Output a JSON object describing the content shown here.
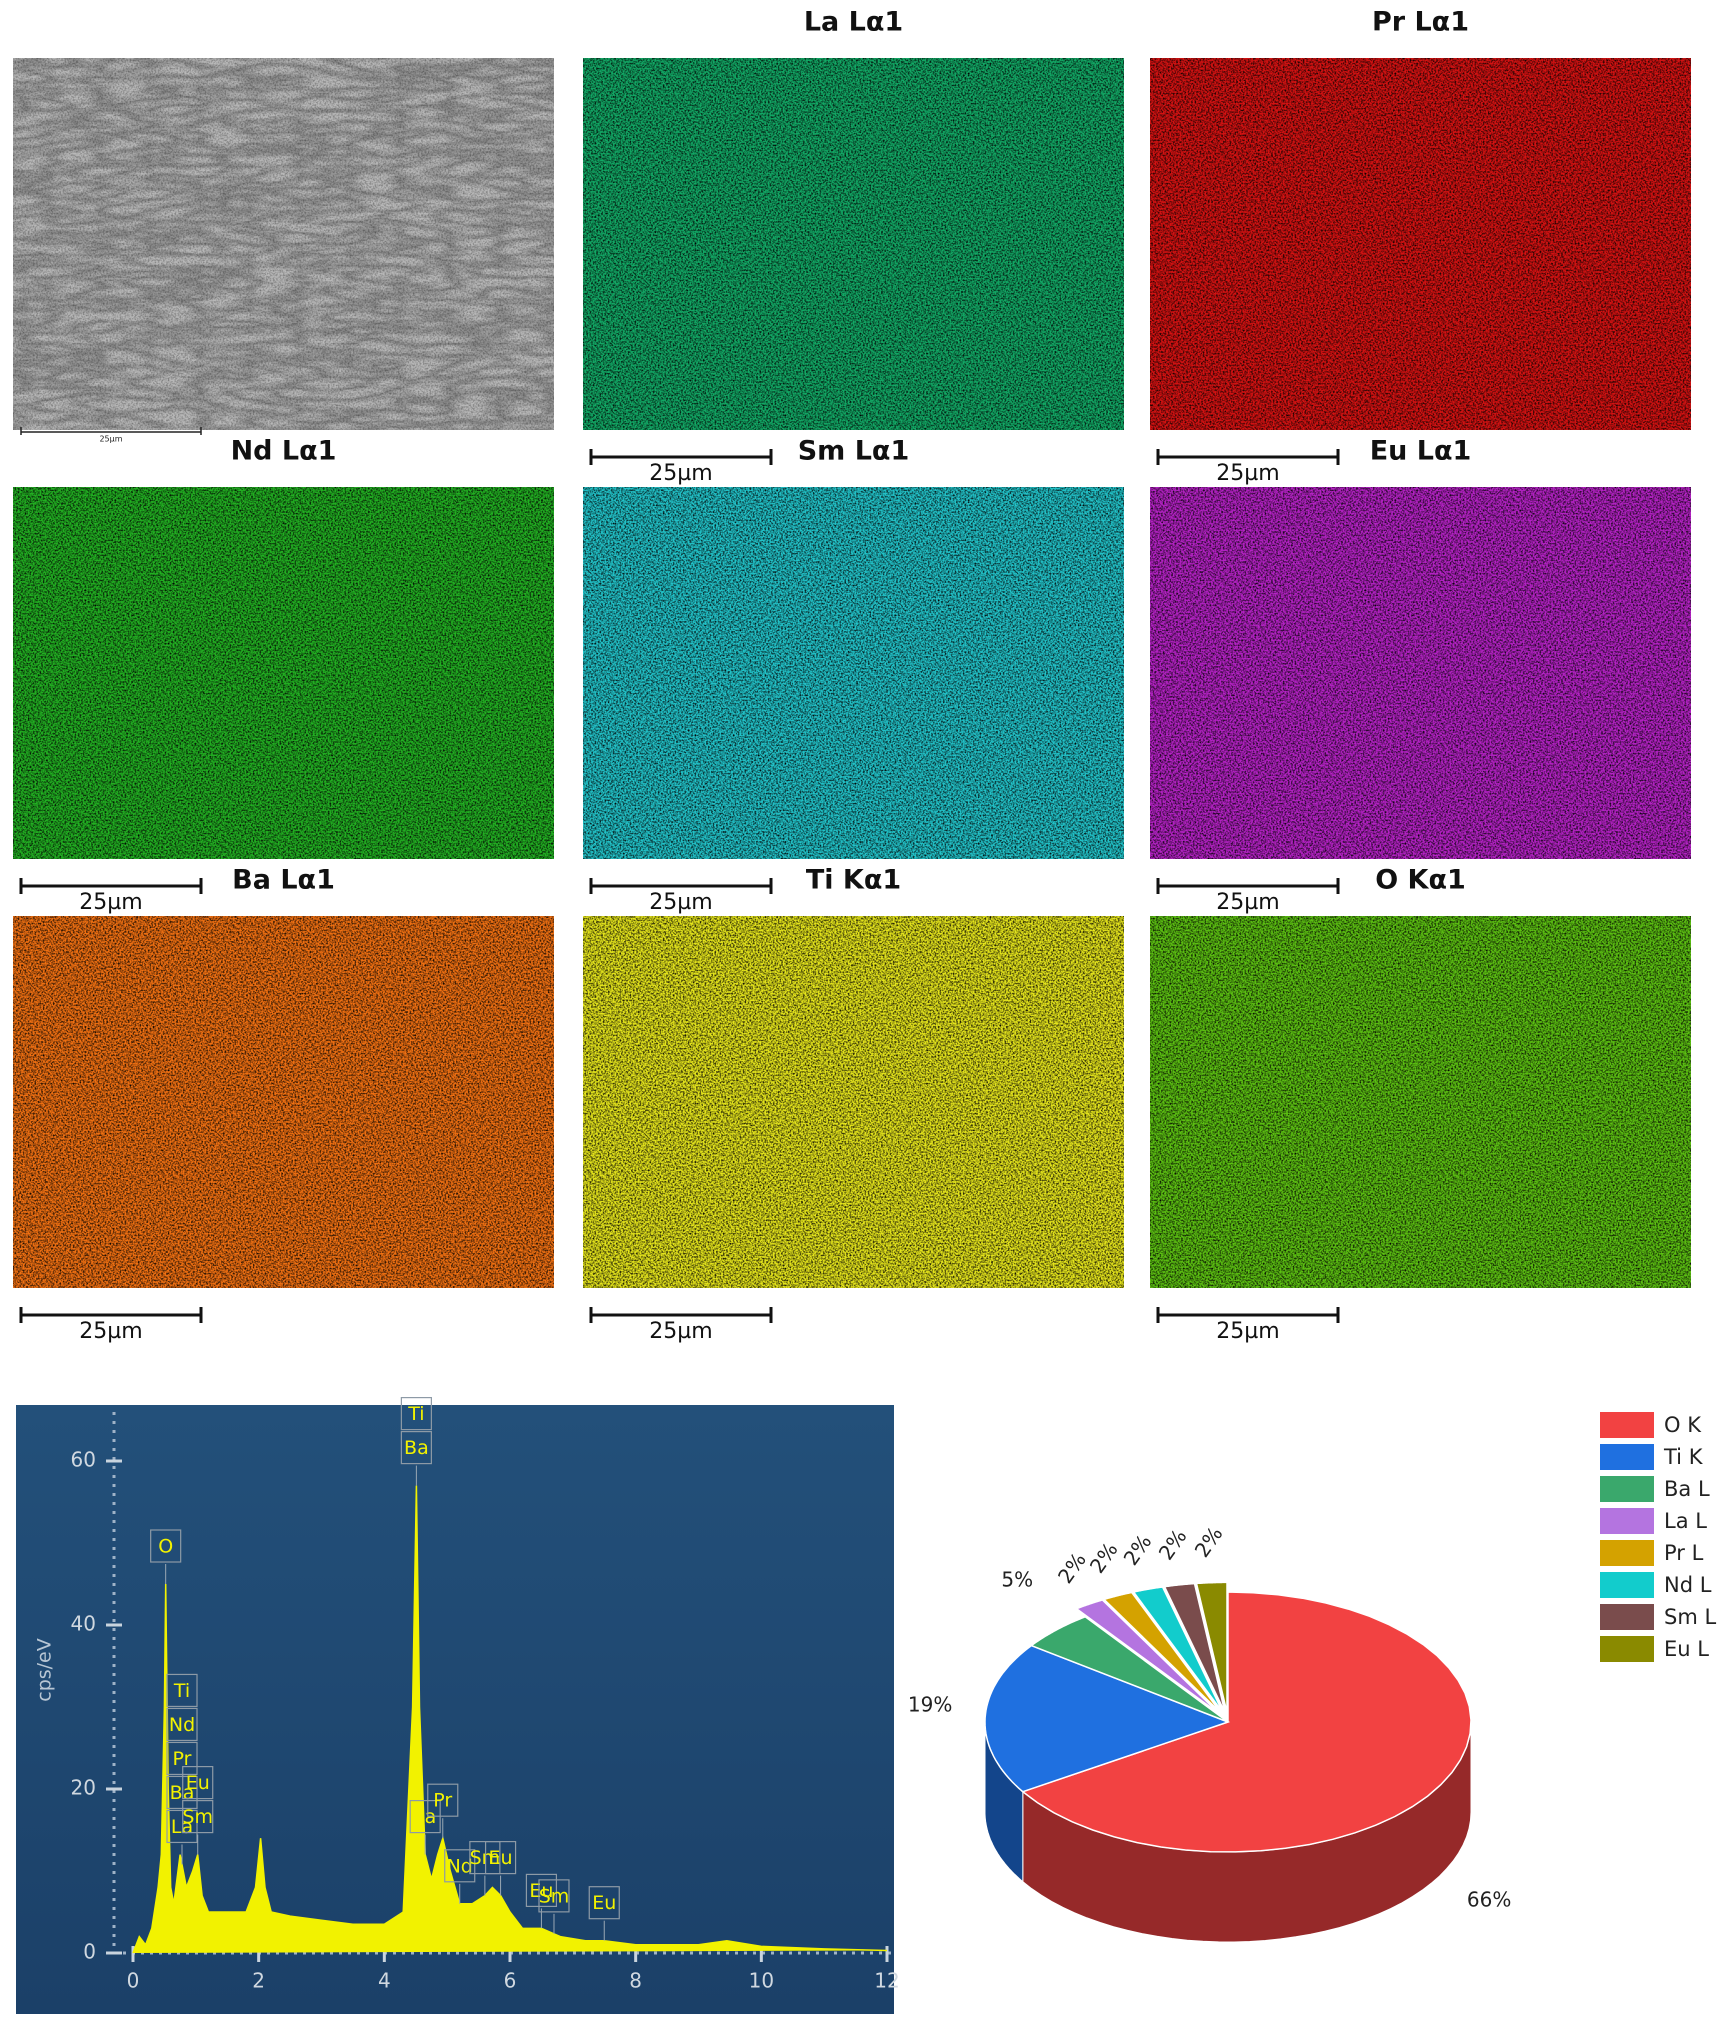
{
  "maps": {
    "panels": [
      {
        "scale_label": "25µm",
        "color": "#b8b8b8"
      },
      {
        "title": "La Lα1",
        "scale_label": "25µm",
        "color": "#12a865"
      },
      {
        "title": "Pr Lα1",
        "scale_label": "25µm",
        "color": "#d41212"
      },
      {
        "title": "Nd Lα1",
        "scale_label": "25µm",
        "color": "#22b022"
      },
      {
        "title": "Sm Lα1",
        "scale_label": "25µm",
        "color": "#22c2c8"
      },
      {
        "title": "Eu Lα1",
        "scale_label": "25µm",
        "color": "#b422c4"
      },
      {
        "title": "Ba Lα1",
        "scale_label": "25µm",
        "color": "#f07012"
      },
      {
        "title": "Ti Kα1",
        "scale_label": "25µm",
        "color": "#e4e41c"
      },
      {
        "title": "O Kα1",
        "scale_label": "25µm",
        "color": "#5cc012"
      }
    ]
  },
  "chart_data": [
    {
      "type": "line",
      "y_label": "cps/eV",
      "x": [
        0,
        0.1,
        0.2,
        0.3,
        0.4,
        0.45,
        0.5,
        0.52,
        0.56,
        0.6,
        0.65,
        0.75,
        0.85,
        0.95,
        1.03,
        1.1,
        1.2,
        1.5,
        1.8,
        1.95,
        2.03,
        2.1,
        2.2,
        2.5,
        3,
        3.5,
        4,
        4.3,
        4.45,
        4.51,
        4.56,
        4.65,
        4.75,
        4.85,
        4.93,
        5.05,
        5.2,
        5.4,
        5.6,
        5.72,
        5.85,
        6,
        6.2,
        6.5,
        6.8,
        7.2,
        7.5,
        8,
        9,
        9.45,
        10,
        11,
        12
      ],
      "series": [
        {
          "color": "#f2f200",
          "values": [
            0,
            2,
            1,
            3,
            8,
            12,
            30,
            45,
            20,
            8,
            6,
            12,
            8,
            10,
            12,
            7,
            5,
            5,
            5,
            8,
            14,
            8,
            5,
            4.5,
            4,
            3.5,
            3.5,
            5,
            30,
            57,
            30,
            12,
            9,
            12,
            14,
            10,
            6,
            6,
            7,
            8,
            7,
            5,
            3,
            3,
            2,
            1.5,
            1.5,
            1,
            1,
            1.5,
            0.8,
            0.5,
            0.3
          ]
        }
      ],
      "xlim": [
        0,
        12
      ],
      "ylim": [
        0,
        65
      ],
      "xticks": [
        0,
        2,
        4,
        6,
        8,
        10,
        12
      ],
      "yticks": [
        0,
        20,
        40,
        60
      ],
      "peak_labels": [
        {
          "x": 0.52,
          "labels": [
            "O"
          ]
        },
        {
          "x": 0.78,
          "labels": [
            "Ti",
            "Nd",
            "Pr",
            "Ba",
            "La"
          ]
        },
        {
          "x": 1.03,
          "labels": [
            "Eu",
            "Sm"
          ]
        },
        {
          "x": 4.51,
          "labels": [
            "Ti",
            "Ba"
          ]
        },
        {
          "x": 4.65,
          "labels": [
            "La"
          ]
        },
        {
          "x": 4.93,
          "labels": [
            "Pr"
          ]
        },
        {
          "x": 5.2,
          "labels": [
            "Nd"
          ]
        },
        {
          "x": 5.6,
          "labels": [
            "Sm"
          ]
        },
        {
          "x": 5.85,
          "labels": [
            "Eu"
          ]
        },
        {
          "x": 6.5,
          "labels": [
            "Eu"
          ]
        },
        {
          "x": 6.7,
          "labels": [
            "Sm"
          ]
        },
        {
          "x": 7.5,
          "labels": [
            "Eu"
          ]
        }
      ]
    },
    {
      "type": "pie",
      "categories": [
        "O K",
        "Ti K",
        "Ba L",
        "La L",
        "Pr L",
        "Nd L",
        "Sm L",
        "Eu L"
      ],
      "values": [
        66,
        19,
        5,
        2,
        2,
        2,
        2,
        2
      ],
      "value_labels": [
        "66%",
        "19%",
        "5%",
        "2%",
        "2%",
        "2%",
        "2%",
        "2%"
      ],
      "colors": [
        "#f24242",
        "#1f70e0",
        "#3aa86c",
        "#b474e0",
        "#d4a200",
        "#12cccc",
        "#7a4c4c",
        "#8a8a00"
      ],
      "legend": "right"
    }
  ]
}
